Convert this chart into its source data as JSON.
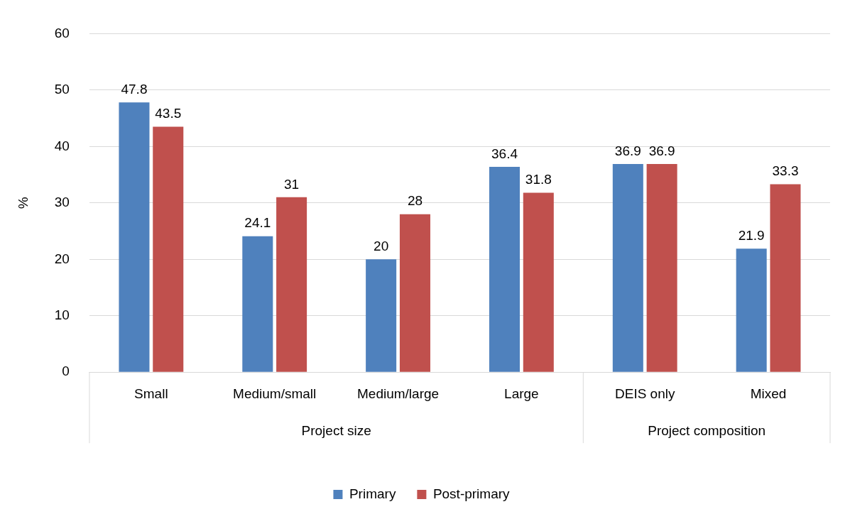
{
  "chart_data": {
    "type": "bar",
    "ylabel": "%",
    "categories": [
      "Small",
      "Medium/small",
      "Medium/large",
      "Large",
      "DEIS only",
      "Mixed"
    ],
    "series": [
      {
        "name": "Primary",
        "color": "#4f81bd",
        "values": [
          47.8,
          24.1,
          20,
          36.4,
          36.9,
          21.9
        ]
      },
      {
        "name": "Post-primary",
        "color": "#c0504d",
        "values": [
          43.5,
          31,
          28,
          31.8,
          36.9,
          33.3
        ]
      }
    ],
    "ylim": [
      0,
      60
    ],
    "yticks": [
      0,
      10,
      20,
      30,
      40,
      50,
      60
    ],
    "grid": "y",
    "legend": "bottom",
    "data_labels": true,
    "annotations": [
      "Project size",
      "Project composition"
    ]
  }
}
